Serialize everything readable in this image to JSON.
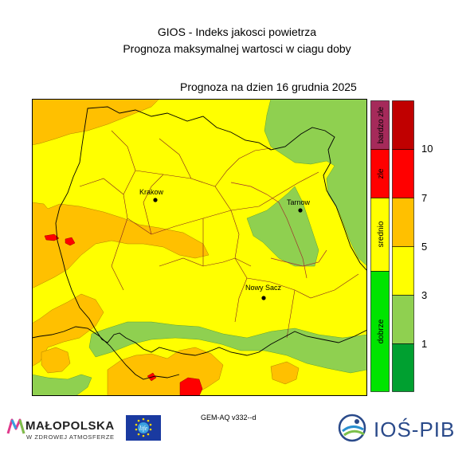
{
  "title_line1": "GIOS - Indeks jakosci powietrza",
  "title_line2": "Prognoza maksymalnej wartosci w ciagu doby",
  "forecast_date": "Prognoza na dzien  16 grudnia 2025",
  "cities": [
    {
      "name": "Krakow"
    },
    {
      "name": "Tarnow"
    },
    {
      "name": "Nowy Sacz"
    }
  ],
  "category_scale": [
    {
      "label": "dobrze",
      "color": "#00e400"
    },
    {
      "label": "srednio",
      "color": "#ffff00"
    },
    {
      "label": "zle",
      "color": "#ff0000"
    },
    {
      "label": "bardzo zle",
      "color": "#a52a5a"
    }
  ],
  "value_scale": {
    "colors": [
      "#00a030",
      "#8fd050",
      "#ffff00",
      "#ffc000",
      "#ff0000",
      "#c00000"
    ],
    "ticks": [
      "1",
      "3",
      "5",
      "7",
      "10"
    ]
  },
  "model_label": "GEM-AQ v332--d",
  "logos": {
    "malopolska_name": "MAŁOPOLSKA",
    "malopolska_sub": "W ZDROWEJ ATMOSFERZE",
    "life_text": "life",
    "ios_name": "IOŚ-PIB"
  }
}
